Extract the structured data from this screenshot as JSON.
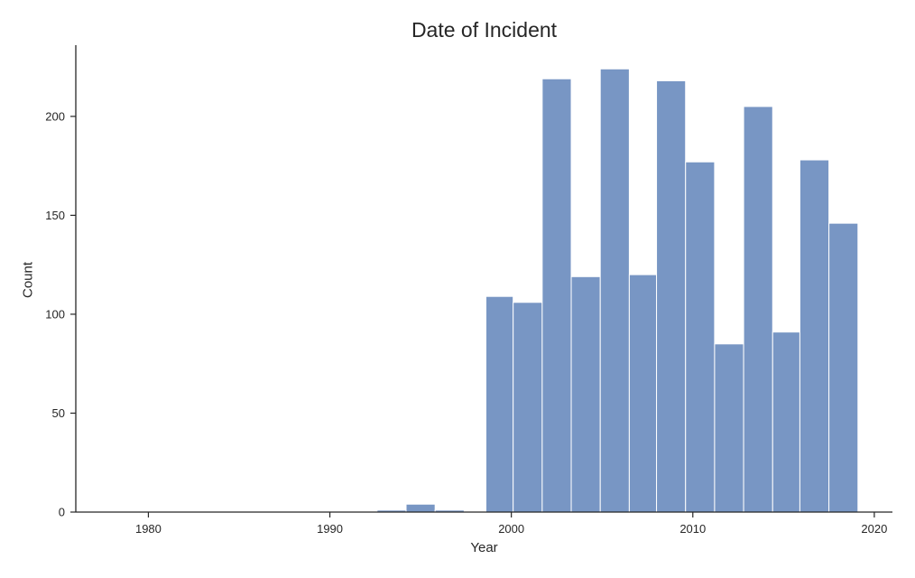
{
  "chart_data": {
    "type": "bar",
    "subtype": "histogram",
    "title": "Date of Incident",
    "xlabel": "Year",
    "ylabel": "Count",
    "xlim": [
      1976,
      2021
    ],
    "ylim": [
      0,
      236
    ],
    "x_ticks": [
      1980,
      1990,
      2000,
      2010,
      2020
    ],
    "y_ticks": [
      0,
      50,
      100,
      150,
      200
    ],
    "x_tick_labels": [
      "1980",
      "1990",
      "2000",
      "2010",
      "2020"
    ],
    "y_tick_labels": [
      "0",
      "50",
      "100",
      "150",
      "200"
    ],
    "bin_width": 1.58,
    "bins": [
      {
        "x0": 1976.8,
        "x1": 1978.4,
        "value": 0
      },
      {
        "x0": 1992.6,
        "x1": 1994.2,
        "value": 1
      },
      {
        "x0": 1994.2,
        "x1": 1995.8,
        "value": 4
      },
      {
        "x0": 1995.8,
        "x1": 1997.4,
        "value": 1
      },
      {
        "x0": 1998.6,
        "x1": 2000.1,
        "value": 109
      },
      {
        "x0": 2000.1,
        "x1": 2001.7,
        "value": 106
      },
      {
        "x0": 2001.7,
        "x1": 2003.3,
        "value": 219
      },
      {
        "x0": 2003.3,
        "x1": 2004.9,
        "value": 119
      },
      {
        "x0": 2004.9,
        "x1": 2006.5,
        "value": 224
      },
      {
        "x0": 2006.5,
        "x1": 2008.0,
        "value": 120
      },
      {
        "x0": 2008.0,
        "x1": 2009.6,
        "value": 218
      },
      {
        "x0": 2009.6,
        "x1": 2011.2,
        "value": 177
      },
      {
        "x0": 2011.2,
        "x1": 2012.8,
        "value": 85
      },
      {
        "x0": 2012.8,
        "x1": 2014.4,
        "value": 205
      },
      {
        "x0": 2014.4,
        "x1": 2015.9,
        "value": 91
      },
      {
        "x0": 2015.9,
        "x1": 2017.5,
        "value": 178
      },
      {
        "x0": 2017.5,
        "x1": 2019.1,
        "value": 146
      }
    ],
    "colors": {
      "bar_fill": "#7896c4",
      "bar_edge": "#ffffff",
      "axis": "#262626"
    },
    "grid": false,
    "legend": "none"
  }
}
